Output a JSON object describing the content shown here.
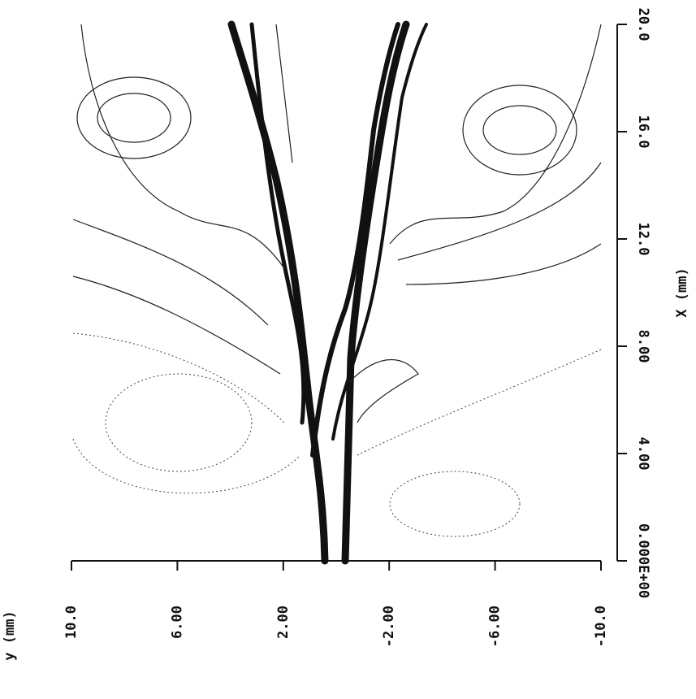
{
  "chart_data": {
    "type": "contour",
    "x_label": "X (mm)",
    "y_label": "y (mm)",
    "xlim": [
      0,
      20
    ],
    "xticks": [
      {
        "value": 0,
        "label": "0.000E+00"
      },
      {
        "value": 4,
        "label": "4.00"
      },
      {
        "value": 8,
        "label": "8.00"
      },
      {
        "value": 12,
        "label": "12.0"
      },
      {
        "value": 16,
        "label": "16.0"
      },
      {
        "value": 20,
        "label": "20.0"
      }
    ],
    "ylim": [
      10,
      -10
    ],
    "yticks": [
      {
        "value": 10,
        "label": "10.0"
      },
      {
        "value": 6,
        "label": "6.00"
      },
      {
        "value": 2,
        "label": "2.00"
      },
      {
        "value": -2,
        "label": "-2.00"
      },
      {
        "value": -6,
        "label": "-6.00"
      },
      {
        "value": -10,
        "label": "-10.0"
      }
    ]
  }
}
